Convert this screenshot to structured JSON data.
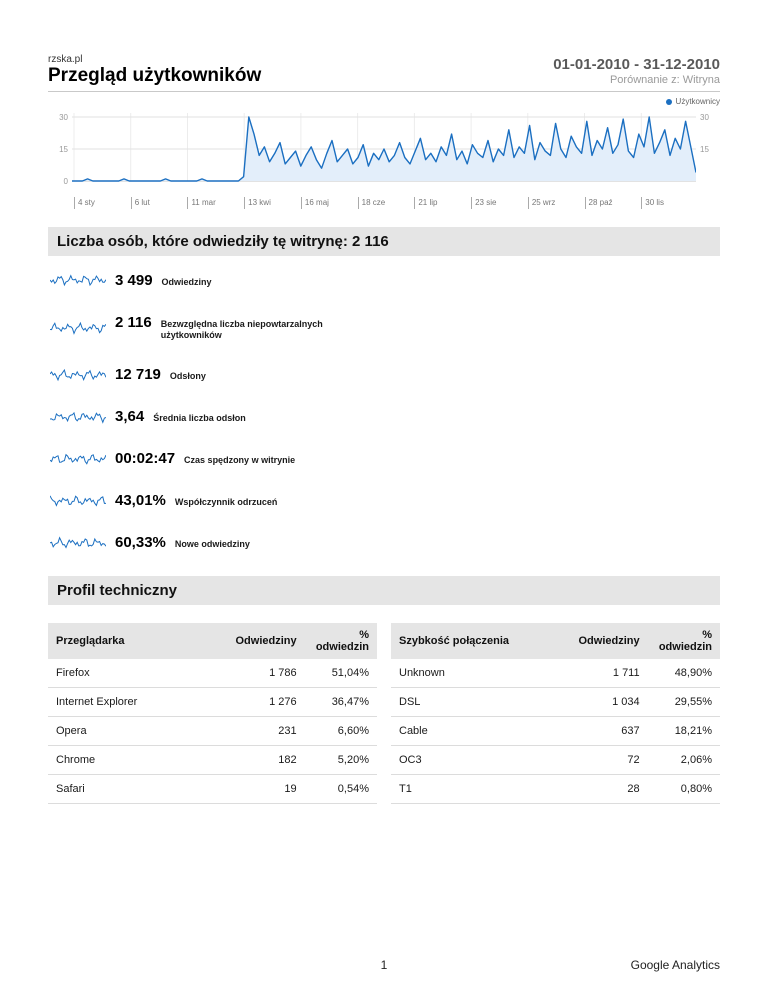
{
  "header": {
    "site": "rzska.pl",
    "title": "Przegląd użytkowników",
    "date_range": "01-01-2010 - 31-12-2010",
    "comparison": "Porównanie z: Witryna"
  },
  "chart_data": {
    "type": "line",
    "legend": "Użytkownicy",
    "title": "",
    "xlabel": "",
    "ylabel": "",
    "ylim": [
      0,
      30
    ],
    "y_ticks_left": [
      30,
      15,
      0
    ],
    "y_ticks_right": [
      30,
      15
    ],
    "x_tick_labels": [
      "4 sty",
      "6 lut",
      "11 mar",
      "13 kwi",
      "16 maj",
      "18 cze",
      "21 lip",
      "23 sie",
      "25 wrz",
      "28 paź",
      "30 lis"
    ],
    "series": [
      {
        "name": "Użytkownicy",
        "values": [
          0,
          0,
          0,
          1,
          0,
          0,
          0,
          0,
          0,
          0,
          1,
          0,
          0,
          0,
          0,
          0,
          0,
          0,
          1,
          0,
          0,
          0,
          0,
          0,
          0,
          1,
          0,
          0,
          0,
          0,
          0,
          0,
          0,
          2,
          30,
          22,
          12,
          16,
          9,
          13,
          18,
          8,
          11,
          14,
          7,
          12,
          16,
          10,
          6,
          13,
          19,
          9,
          12,
          15,
          8,
          11,
          17,
          7,
          13,
          10,
          15,
          9,
          12,
          18,
          11,
          8,
          14,
          20,
          10,
          13,
          9,
          16,
          12,
          22,
          10,
          14,
          8,
          17,
          13,
          11,
          19,
          9,
          15,
          12,
          24,
          11,
          16,
          13,
          26,
          10,
          18,
          14,
          12,
          27,
          15,
          11,
          21,
          16,
          13,
          28,
          12,
          19,
          15,
          25,
          13,
          17,
          29,
          14,
          11,
          22,
          16,
          30,
          13,
          18,
          24,
          12,
          20,
          15,
          28,
          16,
          4
        ]
      }
    ]
  },
  "sections": {
    "visitors_title": "Liczba osób, które odwiedziły tę witrynę: 2 116",
    "technical_title": "Profil techniczny"
  },
  "metrics": [
    {
      "value": "3 499",
      "label": "Odwiedziny"
    },
    {
      "value": "2 116",
      "label": "Bezwzględna liczba niepowtarzalnych użytkowników"
    },
    {
      "value": "12 719",
      "label": "Odsłony"
    },
    {
      "value": "3,64",
      "label": "Średnia liczba odsłon"
    },
    {
      "value": "00:02:47",
      "label": "Czas spędzony w witrynie"
    },
    {
      "value": "43,01%",
      "label": "Współczynnik odrzuceń"
    },
    {
      "value": "60,33%",
      "label": "Nowe odwiedziny"
    }
  ],
  "tables": [
    {
      "headers": [
        "Przeglądarka",
        "Odwiedziny",
        "% odwiedzin"
      ],
      "rows": [
        [
          "Firefox",
          "1 786",
          "51,04%"
        ],
        [
          "Internet Explorer",
          "1 276",
          "36,47%"
        ],
        [
          "Opera",
          "231",
          "6,60%"
        ],
        [
          "Chrome",
          "182",
          "5,20%"
        ],
        [
          "Safari",
          "19",
          "0,54%"
        ]
      ]
    },
    {
      "headers": [
        "Szybkość połączenia",
        "Odwiedziny",
        "% odwiedzin"
      ],
      "rows": [
        [
          "Unknown",
          "1 711",
          "48,90%"
        ],
        [
          "DSL",
          "1 034",
          "29,55%"
        ],
        [
          "Cable",
          "637",
          "18,21%"
        ],
        [
          "OC3",
          "72",
          "2,06%"
        ],
        [
          "T1",
          "28",
          "0,80%"
        ]
      ]
    }
  ],
  "footer": {
    "page_number": "1",
    "brand": "Google Analytics"
  },
  "colors": {
    "accent_blue": "#1b6fc1",
    "area_fill": "#e3eefa",
    "section_bg": "#e5e5e5"
  }
}
